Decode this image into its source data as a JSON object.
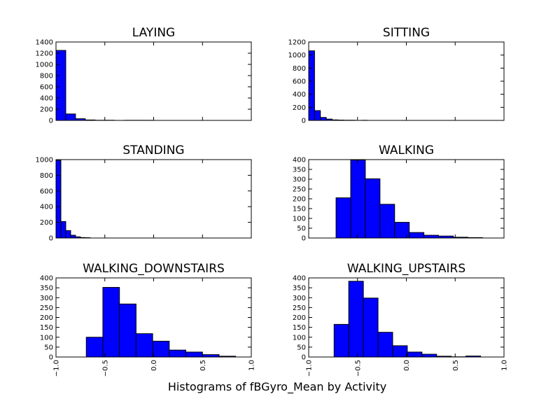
{
  "figure": {
    "suptitle": "Histograms of fBGyro_Mean by Activity",
    "bar_color": "#0000ff",
    "edge_color": "#000000"
  },
  "chart_data": [
    {
      "type": "bar",
      "title": "LAYING",
      "xlim": [
        -1.0,
        1.0
      ],
      "ylim": [
        0,
        1400
      ],
      "yticks": [
        0,
        200,
        400,
        600,
        800,
        1000,
        1200,
        1400
      ],
      "xticks": [],
      "bins": [
        {
          "x0": -1.0,
          "x1": -0.9,
          "count": 1250
        },
        {
          "x0": -0.9,
          "x1": -0.8,
          "count": 115
        },
        {
          "x0": -0.8,
          "x1": -0.7,
          "count": 30
        },
        {
          "x0": -0.7,
          "x1": -0.6,
          "count": 8
        },
        {
          "x0": -0.6,
          "x1": -0.5,
          "count": 3
        },
        {
          "x0": -0.5,
          "x1": -0.4,
          "count": 3
        },
        {
          "x0": -0.3,
          "x1": -0.2,
          "count": 2
        },
        {
          "x0": -0.2,
          "x1": -0.1,
          "count": 2
        },
        {
          "x0": -0.1,
          "x1": 0.0,
          "count": 2
        }
      ]
    },
    {
      "type": "bar",
      "title": "SITTING",
      "xlim": [
        -1.0,
        1.0
      ],
      "ylim": [
        0,
        1200
      ],
      "yticks": [
        0,
        200,
        400,
        600,
        800,
        1000,
        1200
      ],
      "xticks": [],
      "bins": [
        {
          "x0": -1.0,
          "x1": -0.94,
          "count": 1065
        },
        {
          "x0": -0.94,
          "x1": -0.88,
          "count": 150
        },
        {
          "x0": -0.88,
          "x1": -0.82,
          "count": 45
        },
        {
          "x0": -0.82,
          "x1": -0.76,
          "count": 20
        },
        {
          "x0": -0.76,
          "x1": -0.7,
          "count": 8
        },
        {
          "x0": -0.7,
          "x1": -0.64,
          "count": 5
        },
        {
          "x0": -0.64,
          "x1": -0.58,
          "count": 3
        },
        {
          "x0": -0.58,
          "x1": -0.52,
          "count": 3
        },
        {
          "x0": -0.46,
          "x1": -0.4,
          "count": 2
        }
      ]
    },
    {
      "type": "bar",
      "title": "STANDING",
      "xlim": [
        -1.0,
        1.0
      ],
      "ylim": [
        0,
        1000
      ],
      "yticks": [
        0,
        200,
        400,
        600,
        800,
        1000
      ],
      "xticks": [],
      "bins": [
        {
          "x0": -1.0,
          "x1": -0.95,
          "count": 990
        },
        {
          "x0": -0.95,
          "x1": -0.9,
          "count": 210
        },
        {
          "x0": -0.9,
          "x1": -0.85,
          "count": 95
        },
        {
          "x0": -0.85,
          "x1": -0.8,
          "count": 35
        },
        {
          "x0": -0.8,
          "x1": -0.75,
          "count": 15
        },
        {
          "x0": -0.75,
          "x1": -0.7,
          "count": 6
        },
        {
          "x0": -0.7,
          "x1": -0.65,
          "count": 4
        }
      ]
    },
    {
      "type": "bar",
      "title": "WALKING",
      "xlim": [
        -1.0,
        1.0
      ],
      "ylim": [
        0,
        400
      ],
      "yticks": [
        0,
        50,
        100,
        150,
        200,
        250,
        300,
        350,
        400
      ],
      "xticks": [],
      "bins": [
        {
          "x0": -0.72,
          "x1": -0.57,
          "count": 205
        },
        {
          "x0": -0.57,
          "x1": -0.42,
          "count": 398
        },
        {
          "x0": -0.42,
          "x1": -0.27,
          "count": 302
        },
        {
          "x0": -0.27,
          "x1": -0.12,
          "count": 172
        },
        {
          "x0": -0.12,
          "x1": 0.03,
          "count": 80
        },
        {
          "x0": 0.03,
          "x1": 0.18,
          "count": 28
        },
        {
          "x0": 0.18,
          "x1": 0.33,
          "count": 14
        },
        {
          "x0": 0.33,
          "x1": 0.48,
          "count": 10
        },
        {
          "x0": 0.48,
          "x1": 0.63,
          "count": 4
        },
        {
          "x0": 0.63,
          "x1": 0.78,
          "count": 2
        }
      ]
    },
    {
      "type": "bar",
      "title": "WALKING_DOWNSTAIRS",
      "xlim": [
        -1.0,
        1.0
      ],
      "ylim": [
        0,
        400
      ],
      "yticks": [
        0,
        50,
        100,
        150,
        200,
        250,
        300,
        350,
        400
      ],
      "xticks": [
        "−1.0",
        "−0.5",
        "0.0",
        "0.5",
        "1.0"
      ],
      "xtick_values": [
        -1.0,
        -0.5,
        0.0,
        0.5,
        1.0
      ],
      "bins": [
        {
          "x0": -0.69,
          "x1": -0.52,
          "count": 100
        },
        {
          "x0": -0.52,
          "x1": -0.35,
          "count": 352
        },
        {
          "x0": -0.35,
          "x1": -0.18,
          "count": 268
        },
        {
          "x0": -0.18,
          "x1": -0.01,
          "count": 118
        },
        {
          "x0": -0.01,
          "x1": 0.16,
          "count": 80
        },
        {
          "x0": 0.16,
          "x1": 0.33,
          "count": 35
        },
        {
          "x0": 0.33,
          "x1": 0.5,
          "count": 25
        },
        {
          "x0": 0.5,
          "x1": 0.67,
          "count": 12
        },
        {
          "x0": 0.67,
          "x1": 0.84,
          "count": 4
        }
      ]
    },
    {
      "type": "bar",
      "title": "WALKING_UPSTAIRS",
      "xlim": [
        -1.0,
        1.0
      ],
      "ylim": [
        0,
        400
      ],
      "yticks": [
        0,
        50,
        100,
        150,
        200,
        250,
        300,
        350,
        400
      ],
      "xticks": [
        "−1.0",
        "−0.5",
        "0.0",
        "0.5",
        "1.0"
      ],
      "xtick_values": [
        -1.0,
        -0.5,
        0.0,
        0.5,
        1.0
      ],
      "bins": [
        {
          "x0": -0.74,
          "x1": -0.59,
          "count": 165
        },
        {
          "x0": -0.59,
          "x1": -0.44,
          "count": 383
        },
        {
          "x0": -0.44,
          "x1": -0.29,
          "count": 298
        },
        {
          "x0": -0.29,
          "x1": -0.14,
          "count": 125
        },
        {
          "x0": -0.14,
          "x1": 0.01,
          "count": 57
        },
        {
          "x0": 0.01,
          "x1": 0.16,
          "count": 25
        },
        {
          "x0": 0.16,
          "x1": 0.31,
          "count": 14
        },
        {
          "x0": 0.31,
          "x1": 0.46,
          "count": 4
        },
        {
          "x0": 0.46,
          "x1": 0.61,
          "count": 1
        },
        {
          "x0": 0.61,
          "x1": 0.76,
          "count": 5
        }
      ]
    }
  ]
}
